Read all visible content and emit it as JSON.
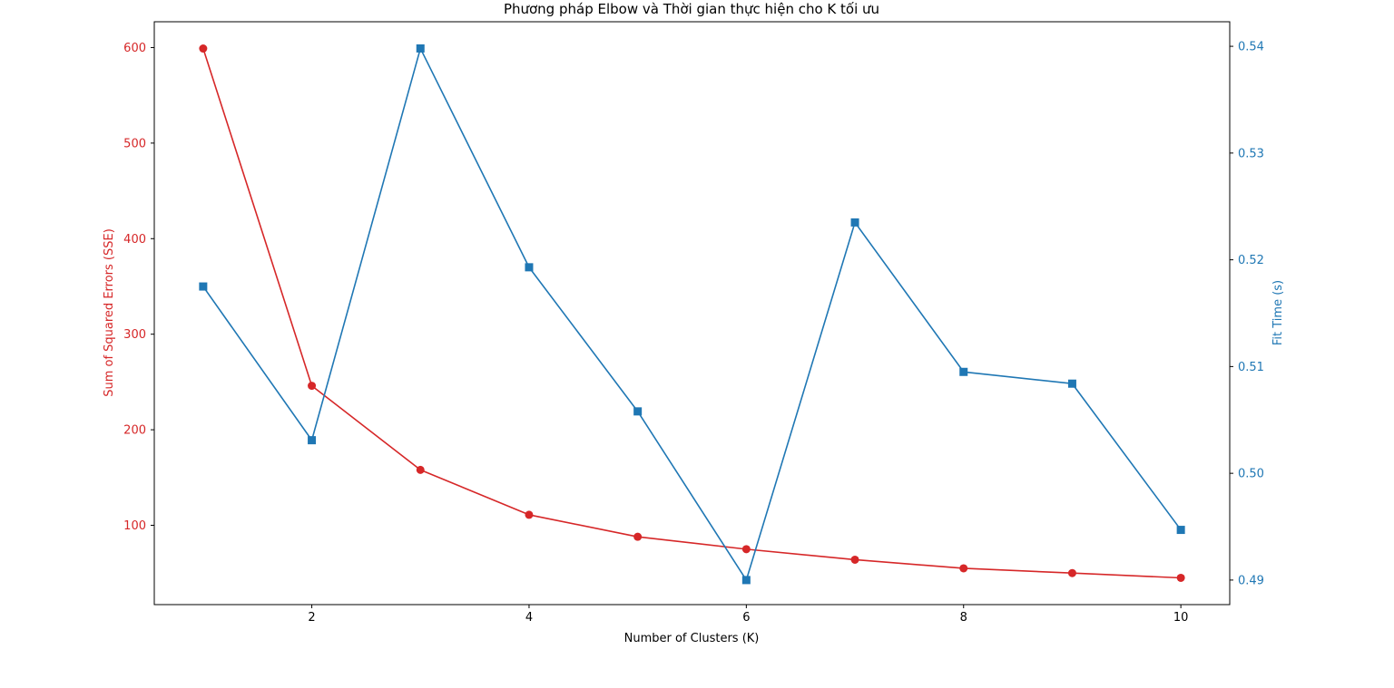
{
  "chart_data": {
    "type": "line",
    "title": "Phương pháp Elbow và Thời gian thực hiện cho K tối ưu",
    "xlabel": "Number of Clusters (K)",
    "xlim": [
      0.55,
      10.45
    ],
    "xticks": [
      2,
      4,
      6,
      8,
      10
    ],
    "x": [
      1,
      2,
      3,
      4,
      5,
      6,
      7,
      8,
      9,
      10
    ],
    "grid": false,
    "axes": {
      "left": {
        "label": "Sum of Squared Errors (SSE)",
        "ylim": [
          17,
          627
        ],
        "ticks": [
          100,
          200,
          300,
          400,
          500,
          600
        ],
        "color": "#d62728"
      },
      "right": {
        "label": "Fit Time (s)",
        "ylim": [
          0.4877,
          0.5423
        ],
        "ticks": [
          0.49,
          0.5,
          0.51,
          0.52,
          0.53,
          0.54
        ],
        "color": "#1f77b4"
      }
    },
    "series": [
      {
        "axis": "left",
        "color": "#d62728",
        "marker": "circle",
        "values": [
          599,
          246,
          158,
          111,
          88,
          75,
          64,
          55,
          50,
          45
        ]
      },
      {
        "axis": "right",
        "color": "#1f77b4",
        "marker": "square",
        "values": [
          0.5175,
          0.5031,
          0.5398,
          0.5193,
          0.5058,
          0.49,
          0.5235,
          0.5095,
          0.5084,
          0.4947
        ]
      }
    ]
  }
}
